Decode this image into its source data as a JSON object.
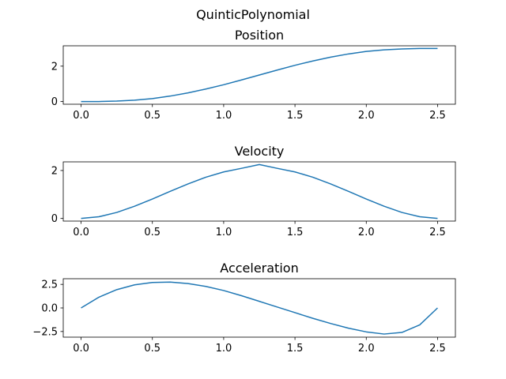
{
  "figure_title": "QuinticPolynomial",
  "line_color": "#1f77b4",
  "chart_data": [
    {
      "type": "line",
      "title": "Position",
      "xlabel": "",
      "ylabel": "",
      "xlim": [
        -0.125,
        2.625
      ],
      "ylim": [
        -0.15,
        3.15
      ],
      "xticks": [
        0.0,
        0.5,
        1.0,
        1.5,
        2.0,
        2.5
      ],
      "xtick_labels": [
        "0.0",
        "0.5",
        "1.0",
        "1.5",
        "2.0",
        "2.5"
      ],
      "yticks": [
        0,
        2
      ],
      "ytick_labels": [
        "0",
        "2"
      ],
      "grid": false,
      "series": [
        {
          "x": [
            0,
            0.125,
            0.25,
            0.375,
            0.5,
            0.625,
            0.75,
            0.875,
            1.0,
            1.125,
            1.25,
            1.375,
            1.5,
            1.625,
            1.75,
            1.875,
            2.0,
            2.125,
            2.25,
            2.375,
            2.5
          ],
          "values": [
            0,
            0.003,
            0.026,
            0.081,
            0.17,
            0.31,
            0.49,
            0.71,
            0.95,
            1.22,
            1.5,
            1.78,
            2.05,
            2.29,
            2.51,
            2.69,
            2.83,
            2.92,
            2.97,
            2.997,
            3.0
          ]
        }
      ]
    },
    {
      "type": "line",
      "title": "Velocity",
      "xlabel": "",
      "ylabel": "",
      "xlim": [
        -0.125,
        2.625
      ],
      "ylim": [
        -0.11,
        2.36
      ],
      "xticks": [
        0.0,
        0.5,
        1.0,
        1.5,
        2.0,
        2.5
      ],
      "xtick_labels": [
        "0.0",
        "0.5",
        "1.0",
        "1.5",
        "2.0",
        "2.5"
      ],
      "yticks": [
        0,
        2
      ],
      "ytick_labels": [
        "0",
        "2"
      ],
      "grid": false,
      "series": [
        {
          "x": [
            0,
            0.125,
            0.25,
            0.375,
            0.5,
            0.625,
            0.75,
            0.875,
            1.0,
            1.125,
            1.25,
            1.375,
            1.5,
            1.625,
            1.75,
            1.875,
            2.0,
            2.125,
            2.25,
            2.375,
            2.5
          ],
          "values": [
            0,
            0.07,
            0.25,
            0.51,
            0.81,
            1.13,
            1.44,
            1.72,
            1.94,
            2.09,
            2.25,
            2.09,
            1.94,
            1.72,
            1.44,
            1.13,
            0.81,
            0.51,
            0.25,
            0.07,
            0
          ]
        }
      ]
    },
    {
      "type": "line",
      "title": "Acceleration",
      "xlabel": "",
      "ylabel": "",
      "xlim": [
        -0.125,
        2.625
      ],
      "ylim": [
        -3.1,
        3.1
      ],
      "xticks": [
        0.0,
        0.5,
        1.0,
        1.5,
        2.0,
        2.5
      ],
      "xtick_labels": [
        "0.0",
        "0.5",
        "1.0",
        "1.5",
        "2.0",
        "2.5"
      ],
      "yticks": [
        2.5,
        0.0,
        -2.5
      ],
      "ytick_labels": [
        "2.5",
        "0.0",
        "−2.5"
      ],
      "grid": false,
      "series": [
        {
          "x": [
            0,
            0.125,
            0.25,
            0.375,
            0.5,
            0.625,
            0.75,
            0.875,
            1.0,
            1.125,
            1.25,
            1.375,
            1.5,
            1.625,
            1.75,
            1.875,
            2.0,
            2.125,
            2.25,
            2.375,
            2.5
          ],
          "values": [
            0,
            1.14,
            1.94,
            2.45,
            2.7,
            2.74,
            2.59,
            2.28,
            1.85,
            1.3,
            0.7,
            0.1,
            -0.5,
            -1.1,
            -1.65,
            -2.15,
            -2.54,
            -2.77,
            -2.6,
            -1.8,
            0
          ]
        }
      ]
    }
  ]
}
